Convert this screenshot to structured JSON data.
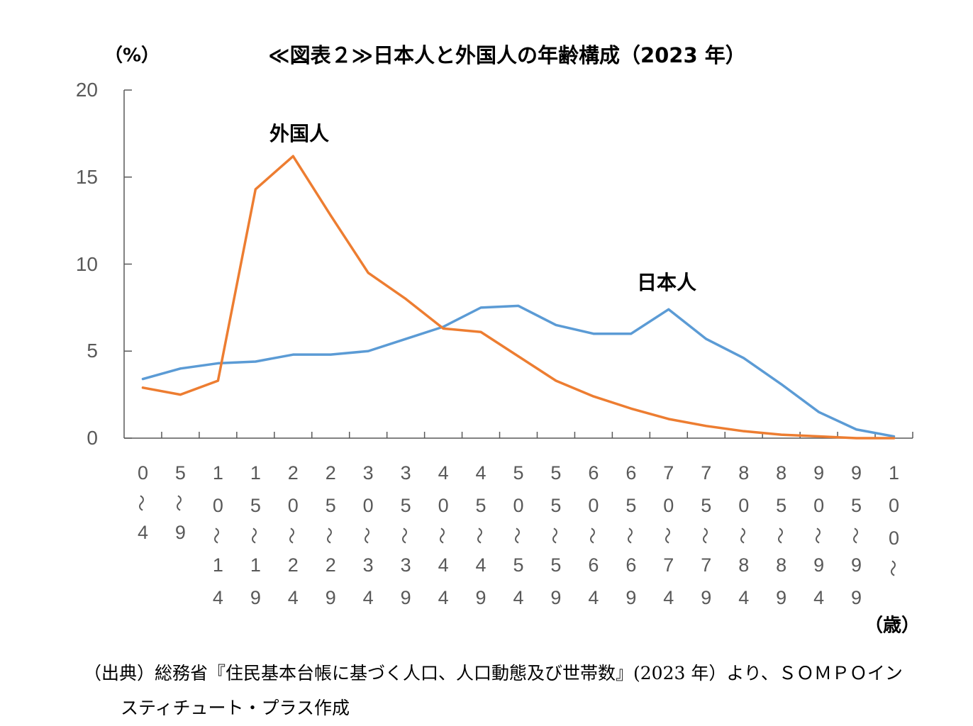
{
  "chart_data": {
    "type": "line",
    "title": "≪図表２≫日本人と外国人の年齢構成（2023 年）",
    "ylabel": "（%）",
    "xlabel": "（歳）",
    "ylim": [
      0,
      20
    ],
    "yticks": [
      0,
      5,
      10,
      15,
      20
    ],
    "grid": false,
    "legend": "none",
    "categories": [
      "0～4",
      "5～9",
      "10～14",
      "15～19",
      "20～24",
      "25～29",
      "30～34",
      "35～39",
      "40～44",
      "45～49",
      "50～54",
      "55～59",
      "60～64",
      "65～69",
      "70～74",
      "75～79",
      "80～84",
      "85～89",
      "90～94",
      "95～99",
      "100～"
    ],
    "series": [
      {
        "name": "日本人",
        "color": "#5B9BD5",
        "values": [
          3.4,
          4.0,
          4.3,
          4.4,
          4.8,
          4.8,
          5.0,
          5.7,
          6.4,
          7.5,
          7.6,
          6.5,
          6.0,
          6.0,
          7.4,
          5.7,
          4.6,
          3.1,
          1.5,
          0.5,
          0.1
        ]
      },
      {
        "name": "外国人",
        "color": "#ED7D31",
        "values": [
          2.9,
          2.5,
          3.3,
          14.3,
          16.2,
          12.8,
          9.5,
          8.0,
          6.3,
          6.1,
          4.7,
          3.3,
          2.4,
          1.7,
          1.1,
          0.7,
          0.4,
          0.2,
          0.1,
          0.0,
          0.0
        ]
      }
    ]
  },
  "footer": {
    "source_lines": [
      "（出典）総務省『住民基本台帳に基づく人口、人口動態及び世帯数』(2023 年）より、ＳＯＭＰＯイン",
      "スティチュート・プラス作成"
    ]
  }
}
